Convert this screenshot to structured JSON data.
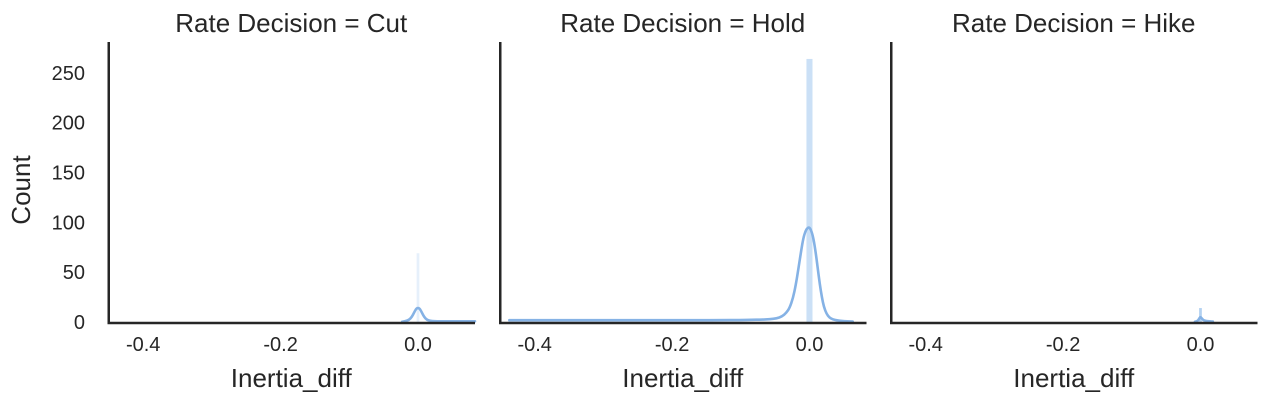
{
  "figure": {
    "background": "#ffffff",
    "text_color": "#262626",
    "spine_color": "#262626",
    "kde_line_color": "#85b2e5",
    "bar_fill_color": "#a6c9ef"
  },
  "chart_data": {
    "type": "bar",
    "subtype": "faceted histogram with KDE overlay (seaborn displot style)",
    "xlabel": "Inertia_diff",
    "ylabel": "Count",
    "x_ticks": [
      -0.4,
      -0.2,
      0.0
    ],
    "x_tick_labels": [
      "-0.4",
      "-0.2",
      "0.0"
    ],
    "y_ticks": [
      0,
      50,
      100,
      150,
      200,
      250
    ],
    "y_tick_labels": [
      "0",
      "50",
      "100",
      "150",
      "200",
      "250"
    ],
    "xlim": [
      -0.452,
      0.083
    ],
    "ylim": [
      0,
      281
    ],
    "grid": false,
    "legend": null,
    "facets": [
      {
        "title": "Rate Decision = Cut",
        "bars": [
          {
            "x": 0.0,
            "width": 0.004,
            "count": 69,
            "opacity": 0.28
          }
        ],
        "kde_peak": {
          "x": 0.0,
          "count": 14
        },
        "kde": [
          [
            -0.023,
            0.2
          ],
          [
            -0.018,
            0.8
          ],
          [
            -0.013,
            2.2
          ],
          [
            -0.009,
            5
          ],
          [
            -0.006,
            9
          ],
          [
            -0.003,
            13
          ],
          [
            -0.001,
            14
          ],
          [
            0.001,
            14
          ],
          [
            0.003,
            13
          ],
          [
            0.006,
            9
          ],
          [
            0.009,
            5
          ],
          [
            0.013,
            2.2
          ],
          [
            0.018,
            1.0
          ],
          [
            0.024,
            0.8
          ],
          [
            0.032,
            0.7
          ],
          [
            0.045,
            0.7
          ],
          [
            0.06,
            0.7
          ],
          [
            0.083,
            0.7
          ]
        ]
      },
      {
        "title": "Rate Decision = Hold",
        "bars": [
          {
            "x": 0.0,
            "width": 0.0088,
            "count": 264,
            "opacity": 0.58
          }
        ],
        "kde_peak": {
          "x": 0.0,
          "count": 95
        },
        "kde": [
          [
            -0.437,
            1.8
          ],
          [
            -0.4,
            1.8
          ],
          [
            -0.36,
            1.8
          ],
          [
            -0.32,
            1.8
          ],
          [
            -0.28,
            1.8
          ],
          [
            -0.24,
            1.8
          ],
          [
            -0.2,
            1.8
          ],
          [
            -0.16,
            1.8
          ],
          [
            -0.13,
            1.9
          ],
          [
            -0.1,
            2.0
          ],
          [
            -0.085,
            2.2
          ],
          [
            -0.07,
            2.4
          ],
          [
            -0.058,
            2.8
          ],
          [
            -0.048,
            3.6
          ],
          [
            -0.04,
            5.5
          ],
          [
            -0.034,
            9
          ],
          [
            -0.029,
            14
          ],
          [
            -0.024,
            24
          ],
          [
            -0.02,
            37
          ],
          [
            -0.016,
            54
          ],
          [
            -0.012,
            72
          ],
          [
            -0.009,
            84
          ],
          [
            -0.006,
            91
          ],
          [
            -0.003,
            94.5
          ],
          [
            0.0,
            95
          ],
          [
            0.003,
            91
          ],
          [
            0.006,
            83
          ],
          [
            0.009,
            70
          ],
          [
            0.012,
            54
          ],
          [
            0.015,
            38
          ],
          [
            0.018,
            25
          ],
          [
            0.021,
            15
          ],
          [
            0.025,
            8
          ],
          [
            0.029,
            4.5
          ],
          [
            0.034,
            2.6
          ],
          [
            0.04,
            1.6
          ],
          [
            0.047,
            1.0
          ],
          [
            0.055,
            0.7
          ],
          [
            0.063,
            0.5
          ]
        ]
      },
      {
        "title": "Rate Decision = Hike",
        "bars": [
          {
            "x": 0.0,
            "width": 0.004,
            "count": 14,
            "opacity": 0.85
          }
        ],
        "kde_peak": {
          "x": 0.0,
          "count": 5
        },
        "kde": [
          [
            -0.008,
            0.2
          ],
          [
            -0.005,
            0.8
          ],
          [
            -0.003,
            2
          ],
          [
            -0.001,
            4.5
          ],
          [
            0.0,
            5
          ],
          [
            0.002,
            3.5
          ],
          [
            0.004,
            2
          ],
          [
            0.007,
            1.2
          ],
          [
            0.011,
            0.8
          ],
          [
            0.015,
            0.5
          ],
          [
            0.018,
            0.4
          ]
        ]
      }
    ]
  }
}
